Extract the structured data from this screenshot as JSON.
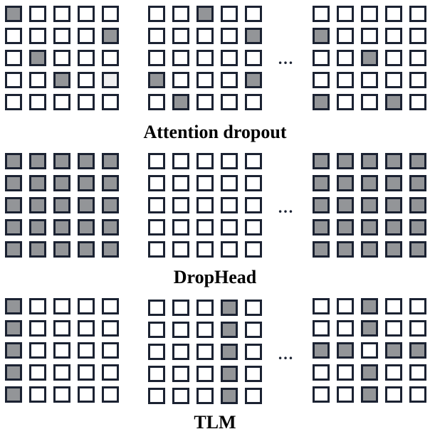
{
  "colors": {
    "filled": "#939598",
    "empty": "#ffffff",
    "faint": "#efeff0",
    "border": "#1b2232"
  },
  "legend_encoding": {
    "0": "empty",
    "1": "filled",
    "2": "faint"
  },
  "ellipsis": "…",
  "sections": [
    {
      "title": "Attention dropout",
      "grids": [
        [
          [
            1,
            0,
            0,
            0,
            0
          ],
          [
            0,
            0,
            0,
            0,
            1
          ],
          [
            0,
            1,
            0,
            0,
            0
          ],
          [
            0,
            0,
            1,
            0,
            2
          ],
          [
            0,
            0,
            0,
            0,
            0
          ]
        ],
        [
          [
            0,
            0,
            1,
            0,
            0
          ],
          [
            0,
            0,
            0,
            0,
            1
          ],
          [
            0,
            0,
            0,
            0,
            0
          ],
          [
            1,
            0,
            0,
            0,
            1
          ],
          [
            0,
            1,
            0,
            0,
            0
          ]
        ],
        [
          [
            0,
            0,
            0,
            0,
            0
          ],
          [
            1,
            0,
            0,
            0,
            0
          ],
          [
            0,
            0,
            1,
            0,
            0
          ],
          [
            0,
            0,
            0,
            0,
            0
          ],
          [
            1,
            0,
            0,
            1,
            0
          ]
        ]
      ]
    },
    {
      "title": "DropHead",
      "grids": [
        [
          [
            1,
            1,
            1,
            1,
            1
          ],
          [
            1,
            1,
            1,
            1,
            1
          ],
          [
            1,
            1,
            1,
            1,
            1
          ],
          [
            1,
            1,
            1,
            1,
            1
          ],
          [
            1,
            1,
            1,
            1,
            1
          ]
        ],
        [
          [
            0,
            0,
            0,
            0,
            0
          ],
          [
            0,
            0,
            0,
            0,
            0
          ],
          [
            0,
            0,
            0,
            0,
            0
          ],
          [
            0,
            0,
            0,
            0,
            0
          ],
          [
            0,
            0,
            0,
            0,
            0
          ]
        ],
        [
          [
            1,
            1,
            1,
            1,
            1
          ],
          [
            1,
            1,
            1,
            1,
            1
          ],
          [
            1,
            1,
            1,
            1,
            1
          ],
          [
            1,
            1,
            1,
            1,
            1
          ],
          [
            1,
            1,
            1,
            1,
            1
          ]
        ]
      ]
    },
    {
      "title": "TLM",
      "grids": [
        [
          [
            1,
            0,
            0,
            0,
            0
          ],
          [
            1,
            0,
            0,
            0,
            0
          ],
          [
            1,
            0,
            0,
            0,
            0
          ],
          [
            1,
            0,
            0,
            0,
            0
          ],
          [
            1,
            0,
            0,
            0,
            0
          ]
        ],
        [
          [
            0,
            0,
            0,
            1,
            0
          ],
          [
            0,
            0,
            0,
            1,
            0
          ],
          [
            0,
            0,
            0,
            1,
            0
          ],
          [
            0,
            0,
            0,
            1,
            0
          ],
          [
            0,
            0,
            0,
            1,
            0
          ]
        ],
        [
          [
            0,
            0,
            1,
            0,
            0
          ],
          [
            0,
            0,
            1,
            0,
            0
          ],
          [
            1,
            1,
            0,
            1,
            1
          ],
          [
            0,
            0,
            1,
            0,
            0
          ],
          [
            0,
            0,
            1,
            0,
            0
          ]
        ]
      ]
    }
  ]
}
